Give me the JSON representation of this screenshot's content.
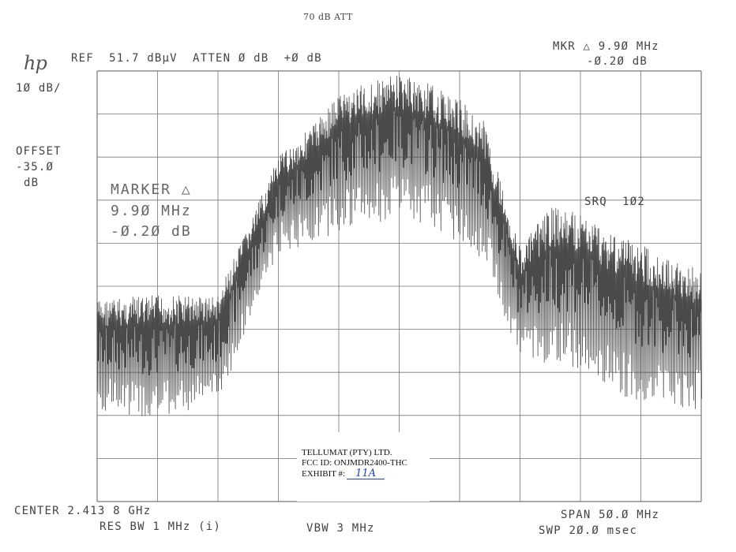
{
  "header": {
    "top_note": "70 dB ATT",
    "logo": "hp",
    "ref": "REF  51.7 dBμV  ATTEN Ø dB  +Ø dB",
    "mkr_line1": "MKR △ 9.9Ø MHz",
    "mkr_line2": "-Ø.2Ø dB",
    "scale": "1Ø dB/",
    "offset_label": "OFFSET",
    "offset_value": "-35.Ø",
    "offset_unit": "dB"
  },
  "marker_readout": {
    "line1": "MARKER △",
    "line2": "9.9Ø MHz",
    "line3": "-Ø.2Ø dB"
  },
  "srq": "SRQ  1Ø2",
  "footer": {
    "center": "CENTER 2.413 8 GHz",
    "res_bw": "RES BW 1 MHz (i)",
    "vbw": "VBW 3 MHz",
    "span": "SPAN 5Ø.Ø MHz",
    "swp": "SWP 2Ø.Ø msec"
  },
  "stamp": {
    "line1": "TELLUMAT (PTY) LTD.",
    "line2": "FCC ID: ONJMDR2400-THC",
    "line3_label": "EXHIBIT #:",
    "line3_value": "11A"
  },
  "chart_data": {
    "type": "line",
    "title": "",
    "xlabel": "",
    "ylabel": "",
    "x_unit": "MHz",
    "y_unit": "dBμV",
    "center_ghz": 2.4138,
    "span_mhz": 50.0,
    "xlim": [
      2388.8,
      2438.8
    ],
    "ref_level": 51.7,
    "db_per_div": 10,
    "ylim": [
      -48.3,
      51.7
    ],
    "grid": true,
    "divisions": {
      "x": 10,
      "y": 10
    },
    "series": [
      {
        "x": [
          2388.8,
          2393.8,
          2398.8,
          2403.8,
          2406.8,
          2408.8,
          2411.3,
          2413.8,
          2416.3,
          2418.8,
          2420.8,
          2423.8,
          2426.3,
          2428.8,
          2431.3,
          2433.8,
          2436.3,
          2438.8
        ],
        "envelope": [
          -1.3,
          -0.3,
          -0.3,
          31.7,
          39.7,
          46.7,
          49.2,
          51.2,
          48.7,
          45.2,
          40.2,
          10.7,
          20.2,
          18.7,
          14.7,
          11.7,
          7.7,
          5.7
        ],
        "floor": [
          -27.3,
          -29.3,
          -25.3,
          9.7,
          11.7,
          14.7,
          15.7,
          17.7,
          15.7,
          11.7,
          7.7,
          -15.3,
          -17.3,
          -17.3,
          -23.3,
          -25.3,
          -26.3,
          -27.3
        ]
      }
    ]
  }
}
